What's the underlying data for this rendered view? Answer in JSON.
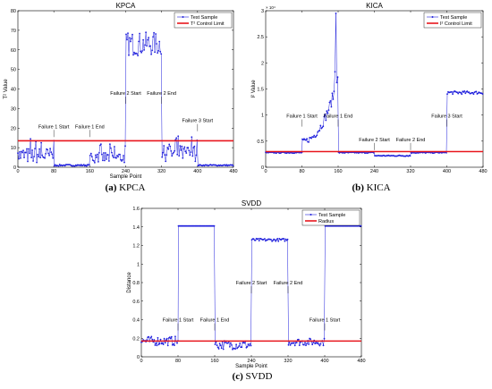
{
  "colors": {
    "sample": "#1f1fdc",
    "limit": "#e8161d",
    "frame": "#000000",
    "background": "#ffffff"
  },
  "chart_data": [
    {
      "id": "kpca",
      "type": "line",
      "caption_letter": "(a)",
      "caption_text": " KPCA",
      "title": "KPCA",
      "xlabel": "Sample Point",
      "ylabel": "T² Value",
      "xlim": [
        0,
        480
      ],
      "ylim": [
        0,
        80
      ],
      "xticks": [
        0,
        80,
        160,
        240,
        320,
        400,
        480
      ],
      "yticks": [
        0,
        10,
        20,
        30,
        40,
        50,
        60,
        70,
        80
      ],
      "multiplier": "",
      "legend_position": "top-right",
      "series": [
        {
          "name": "Test Sample",
          "style": "line-markers",
          "segments": [
            {
              "x0": 0,
              "x1": 80,
              "base": 6,
              "noise": 4,
              "pattern": "spiky"
            },
            {
              "x0": 80,
              "x1": 160,
              "base": 1,
              "noise": 0.4,
              "pattern": "flat"
            },
            {
              "x0": 160,
              "x1": 240,
              "base": 5,
              "noise": 3,
              "pattern": "spiky"
            },
            {
              "x0": 240,
              "x1": 320,
              "base": 63,
              "noise": 6,
              "pattern": "noisy"
            },
            {
              "x0": 320,
              "x1": 400,
              "base": 7,
              "noise": 4,
              "pattern": "spiky"
            },
            {
              "x0": 400,
              "x1": 480,
              "base": 1,
              "noise": 0.3,
              "pattern": "flat"
            }
          ]
        },
        {
          "name": "T² Control Limit",
          "style": "limit",
          "value": 13.5
        }
      ],
      "annotations": [
        {
          "text": "Failure 1 Start",
          "x": 80,
          "y": 20
        },
        {
          "text": "Failure 1 End",
          "x": 160,
          "y": 20
        },
        {
          "text": "Failure 2 Start",
          "x": 240,
          "y": 37
        },
        {
          "text": "Failure 2 End",
          "x": 320,
          "y": 37
        },
        {
          "text": "Failure 3 Start",
          "x": 400,
          "y": 23
        }
      ]
    },
    {
      "id": "kica",
      "type": "line",
      "caption_letter": "(b)",
      "caption_text": " KICA",
      "title": "KICA",
      "xlabel": "",
      "ylabel": "I² Value",
      "xlim": [
        0,
        480
      ],
      "ylim": [
        0,
        3
      ],
      "xticks": [
        0,
        80,
        160,
        240,
        320,
        400,
        480
      ],
      "yticks": [
        0,
        0.5,
        1,
        1.5,
        2,
        2.5,
        3
      ],
      "ytick_labels": [
        "0",
        "0.5",
        "1",
        "1.5",
        "2",
        "2.5",
        "3"
      ],
      "multiplier": "× 10⁴",
      "legend_position": "top-right",
      "series": [
        {
          "name": "Test Sample",
          "style": "line-markers",
          "segments": [
            {
              "x0": 0,
              "x1": 80,
              "base": 0.28,
              "noise": 0.01,
              "pattern": "flat"
            },
            {
              "x0": 80,
              "x1": 160,
              "base": 0.5,
              "noise": 0.08,
              "pattern": "ramp",
              "end": 1.7
            },
            {
              "x0": 160,
              "x1": 240,
              "base": 0.28,
              "noise": 0.01,
              "pattern": "flat"
            },
            {
              "x0": 240,
              "x1": 320,
              "base": 0.22,
              "noise": 0.01,
              "pattern": "flat"
            },
            {
              "x0": 320,
              "x1": 400,
              "base": 0.28,
              "noise": 0.01,
              "pattern": "flat"
            },
            {
              "x0": 400,
              "x1": 480,
              "base": 1.43,
              "noise": 0.03,
              "pattern": "noisy"
            }
          ],
          "peak": {
            "x": 156,
            "y": 2.95
          }
        },
        {
          "name": "I² Control Limit",
          "style": "limit",
          "value": 0.3
        }
      ],
      "annotations": [
        {
          "text": "Failure 1 Start",
          "x": 80,
          "y": 0.95
        },
        {
          "text": "Failure 1 End",
          "x": 160,
          "y": 0.95
        },
        {
          "text": "Failure 2 Start",
          "x": 240,
          "y": 0.5
        },
        {
          "text": "Failure 2 End",
          "x": 320,
          "y": 0.5
        },
        {
          "text": "Failure 3 Start",
          "x": 400,
          "y": 0.95
        }
      ]
    },
    {
      "id": "svdd",
      "type": "line",
      "caption_letter": "(c)",
      "caption_text": " SVDD",
      "title": "SVDD",
      "xlabel": "Sample Point",
      "ylabel": "Distance",
      "xlim": [
        0,
        480
      ],
      "ylim": [
        0,
        1.6
      ],
      "xticks": [
        0,
        80,
        160,
        240,
        320,
        400,
        480
      ],
      "yticks": [
        0,
        0.2,
        0.4,
        0.6,
        0.8,
        1,
        1.2,
        1.4,
        1.6
      ],
      "ytick_labels": [
        "0",
        "0.2",
        "0.4",
        "0.6",
        "0.8",
        "1",
        "1.2",
        "1.4",
        "1.6"
      ],
      "multiplier": "",
      "legend_position": "top-right",
      "series": [
        {
          "name": "Test Sample",
          "style": "line-markers",
          "segments": [
            {
              "x0": 0,
              "x1": 80,
              "base": 0.17,
              "noise": 0.05,
              "pattern": "noisy"
            },
            {
              "x0": 80,
              "x1": 160,
              "base": 1.41,
              "noise": 0.0,
              "pattern": "flat"
            },
            {
              "x0": 160,
              "x1": 240,
              "base": 0.13,
              "noise": 0.05,
              "pattern": "noisy"
            },
            {
              "x0": 240,
              "x1": 320,
              "base": 1.26,
              "noise": 0.015,
              "pattern": "noisy"
            },
            {
              "x0": 320,
              "x1": 400,
              "base": 0.16,
              "noise": 0.04,
              "pattern": "noisy"
            },
            {
              "x0": 400,
              "x1": 480,
              "base": 1.41,
              "noise": 0.0,
              "pattern": "flat"
            }
          ]
        },
        {
          "name": "Radius",
          "style": "limit",
          "value": 0.17
        }
      ],
      "annotations": [
        {
          "text": "Failure 1 Start",
          "x": 80,
          "y": 0.38
        },
        {
          "text": "Failure 1 End",
          "x": 160,
          "y": 0.38
        },
        {
          "text": "Failure 2 Start",
          "x": 240,
          "y": 0.78
        },
        {
          "text": "Failure 2 End",
          "x": 320,
          "y": 0.78
        },
        {
          "text": "Failure 1 Start",
          "x": 400,
          "y": 0.38
        }
      ]
    }
  ]
}
